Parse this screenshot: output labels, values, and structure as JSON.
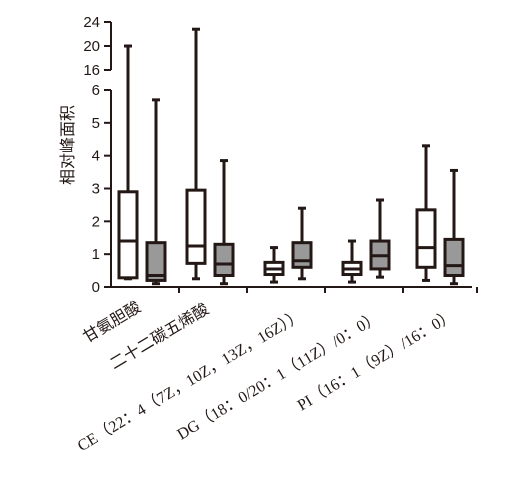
{
  "chart_data": {
    "type": "boxplot",
    "ylabel": "相对峰面积",
    "yaxis": {
      "broken": true,
      "lower_range": [
        0,
        6
      ],
      "upper_range": [
        16,
        24
      ],
      "lower_ticks": [
        "0",
        "1",
        "2",
        "3",
        "4",
        "5",
        "6"
      ],
      "upper_ticks": [
        "16",
        "20",
        "24"
      ]
    },
    "categories": [
      "甘氨胆酸",
      "二十二碳五烯酸",
      "CE（22：4（7Z，10Z，13Z，16Z））",
      "DG（18：0/20：1（11Z）/0：0）",
      "PI（16：1（9Z）/16：0）"
    ],
    "series": [
      {
        "fill": "#ffffff",
        "boxes": [
          {
            "min": 0.25,
            "q1": 0.28,
            "median": 1.4,
            "q3": 2.9,
            "max": 20.0
          },
          {
            "min": 0.25,
            "q1": 0.72,
            "median": 1.25,
            "q3": 2.95,
            "max": 22.8
          },
          {
            "min": 0.15,
            "q1": 0.38,
            "median": 0.55,
            "q3": 0.75,
            "max": 1.2
          },
          {
            "min": 0.15,
            "q1": 0.38,
            "median": 0.55,
            "q3": 0.75,
            "max": 1.4
          },
          {
            "min": 0.2,
            "q1": 0.6,
            "median": 1.2,
            "q3": 2.35,
            "max": 4.3
          }
        ]
      },
      {
        "fill": "#999999",
        "boxes": [
          {
            "min": 0.1,
            "q1": 0.2,
            "median": 0.35,
            "q3": 1.35,
            "max": 5.7
          },
          {
            "min": 0.1,
            "q1": 0.35,
            "median": 0.7,
            "q3": 1.3,
            "max": 3.85
          },
          {
            "min": 0.25,
            "q1": 0.6,
            "median": 0.8,
            "q3": 1.35,
            "max": 2.4
          },
          {
            "min": 0.3,
            "q1": 0.55,
            "median": 0.95,
            "q3": 1.4,
            "max": 2.65
          },
          {
            "min": 0.1,
            "q1": 0.35,
            "median": 0.65,
            "q3": 1.45,
            "max": 3.55
          }
        ]
      }
    ]
  }
}
